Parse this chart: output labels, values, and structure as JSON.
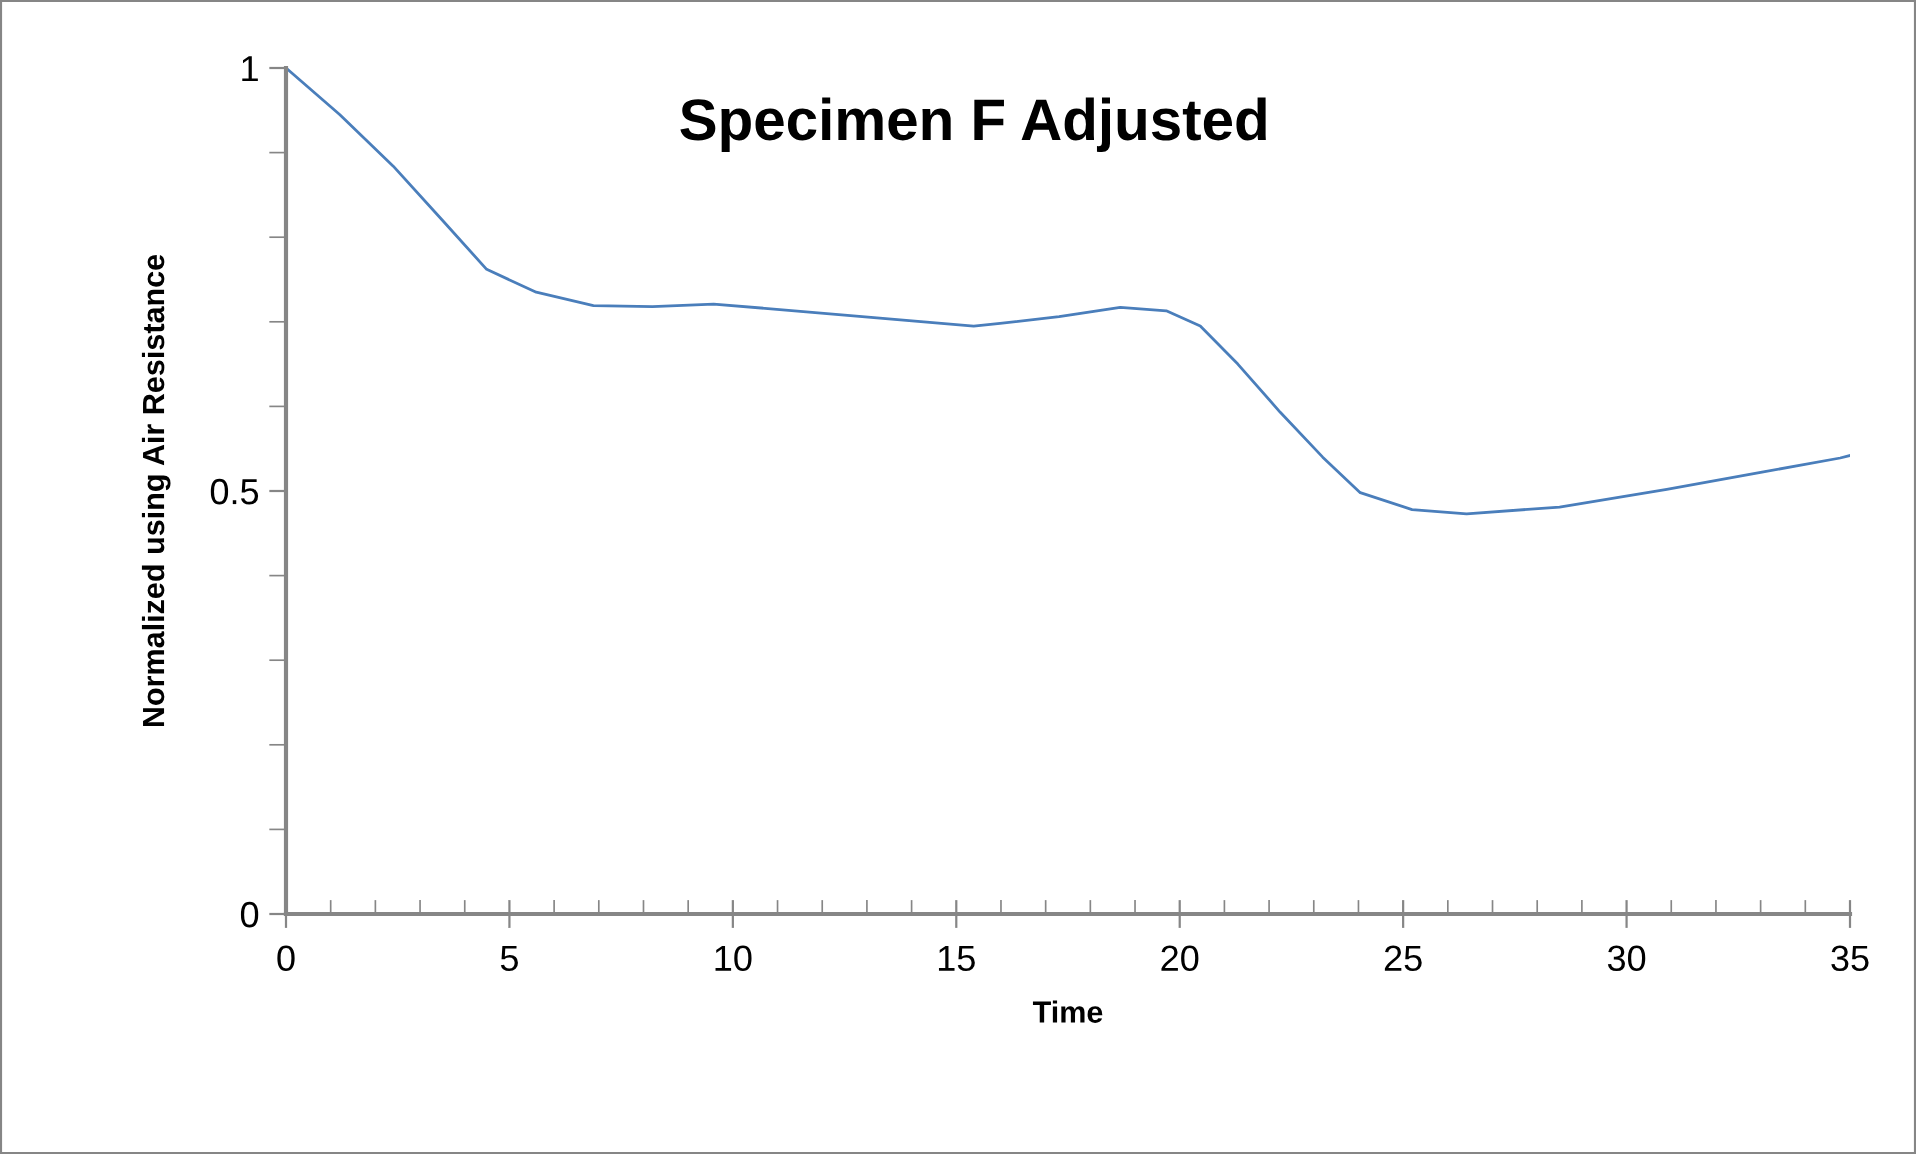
{
  "chart_data": {
    "type": "line",
    "title": "Specimen F Adjusted",
    "xlabel": "Time",
    "ylabel": "Normalized using Air Resistance",
    "series": [
      {
        "color": "#4a7ebb",
        "x": [
          0,
          1.2,
          2.4,
          3.5,
          4.49,
          5.6,
          6.88,
          8.2,
          9.57,
          12.5,
          15.39,
          15.98,
          17.3,
          18.67,
          19.7,
          20.46,
          21.3,
          22.25,
          23.2,
          24.04,
          25.2,
          26.42,
          28.5,
          30.9,
          33,
          34.78,
          35
        ],
        "values": [
          1,
          0.945,
          0.884,
          0.82,
          0.762,
          0.735,
          0.719,
          0.718,
          0.721,
          0.708,
          0.695,
          0.698,
          0.706,
          0.717,
          0.713,
          0.695,
          0.65,
          0.593,
          0.54,
          0.498,
          0.478,
          0.473,
          0.481,
          0.502,
          0.522,
          0.539,
          0.542
        ]
      }
    ],
    "xlim": [
      0,
      35
    ],
    "ylim": [
      0,
      1
    ],
    "xticks": [
      0,
      5,
      10,
      15,
      20,
      25,
      30,
      35
    ],
    "yticks": [
      0,
      0.5,
      1
    ],
    "grid": false,
    "legend": false,
    "marker": "none",
    "line_style": "solid"
  }
}
